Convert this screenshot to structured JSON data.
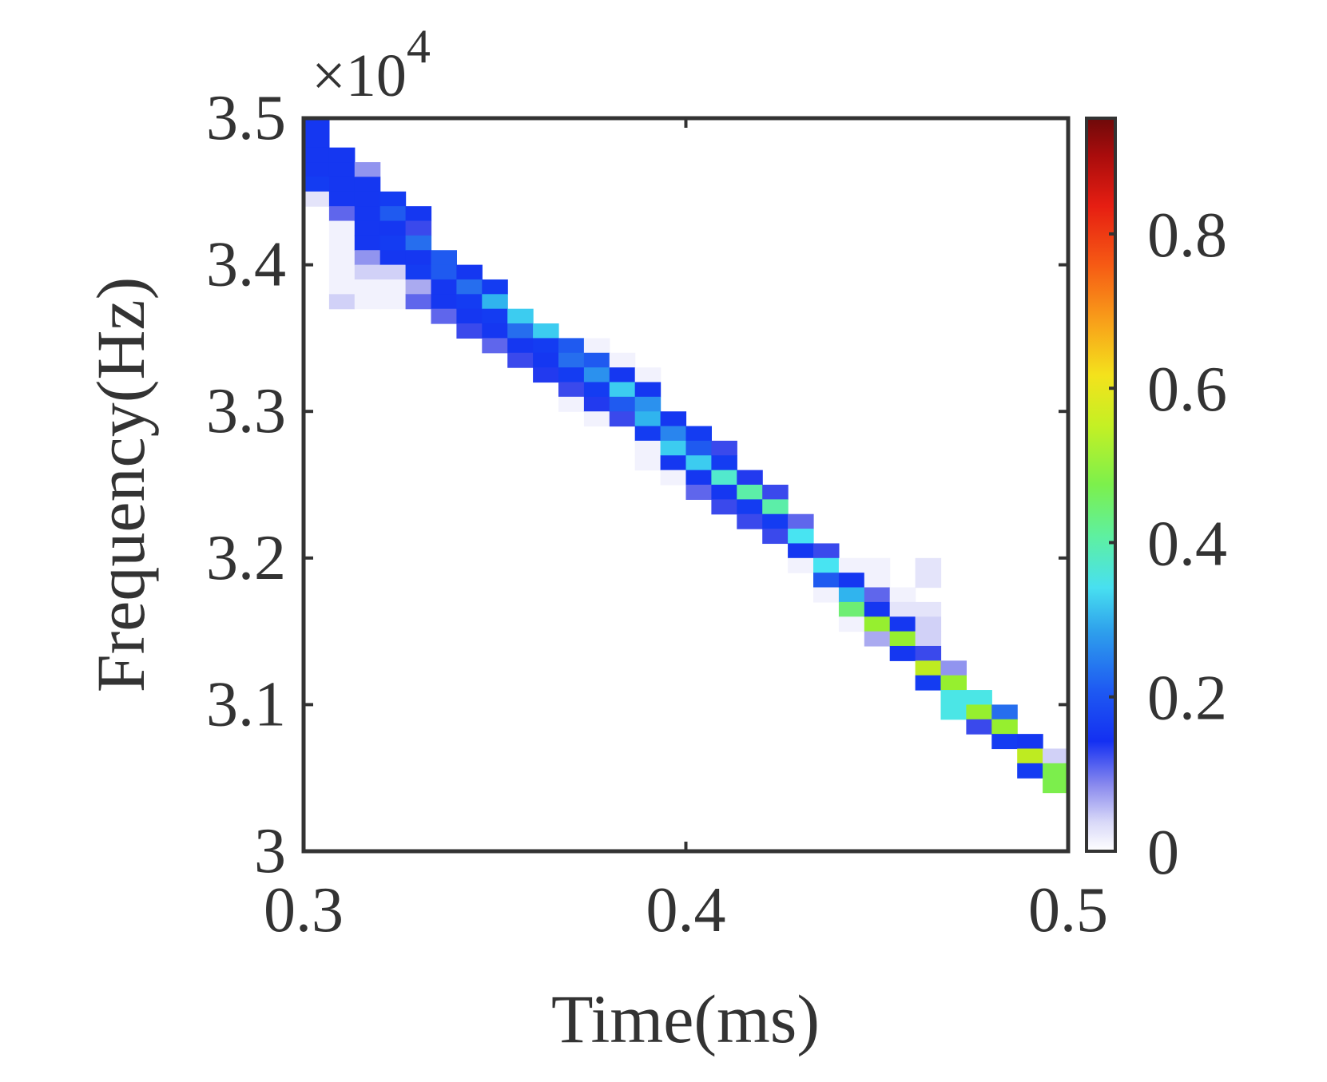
{
  "chart_data": {
    "type": "heatmap",
    "title": "",
    "xlabel": "Time(ms)",
    "ylabel": "Frequency(Hz)",
    "x_ticks": [
      "0.3",
      "0.4",
      "0.5"
    ],
    "y_ticks": [
      "3",
      "3.1",
      "3.2",
      "3.3",
      "3.4",
      "3.5"
    ],
    "y_exponent_label": "×10",
    "y_exponent_power": "4",
    "xlim": [
      0.3,
      0.5
    ],
    "ylim": [
      30000,
      35000
    ],
    "x_tick_values": [
      0.3,
      0.4,
      0.5
    ],
    "y_tick_values": [
      30000,
      31000,
      32000,
      33000,
      34000,
      35000
    ],
    "colorbar": {
      "range": [
        0,
        0.95
      ],
      "ticks": [
        "0",
        "0.2",
        "0.4",
        "0.6",
        "0.8"
      ],
      "tick_values": [
        0,
        0.2,
        0.4,
        0.6,
        0.8
      ],
      "colormap": "jet with white at zero"
    },
    "grid": false,
    "time_bins": 30,
    "frequency_bins": 50,
    "cells": [
      [
        0,
        49,
        0.15
      ],
      [
        0,
        48,
        0.15
      ],
      [
        0,
        47,
        0.15
      ],
      [
        0,
        46,
        0.15
      ],
      [
        0,
        45,
        0.17
      ],
      [
        0,
        44,
        0.02
      ],
      [
        1,
        47,
        0.15
      ],
      [
        1,
        46,
        0.15
      ],
      [
        1,
        45,
        0.15
      ],
      [
        1,
        44,
        0.15
      ],
      [
        1,
        43,
        0.08
      ],
      [
        1,
        42,
        0.01
      ],
      [
        1,
        41,
        0.01
      ],
      [
        1,
        40,
        0.01
      ],
      [
        1,
        39,
        0.01
      ],
      [
        1,
        38,
        0.01
      ],
      [
        1,
        37,
        0.03
      ],
      [
        2,
        46,
        0.06
      ],
      [
        2,
        45,
        0.15
      ],
      [
        2,
        44,
        0.15
      ],
      [
        2,
        43,
        0.15
      ],
      [
        2,
        42,
        0.15
      ],
      [
        2,
        41,
        0.15
      ],
      [
        2,
        40,
        0.06
      ],
      [
        2,
        39,
        0.03
      ],
      [
        2,
        38,
        0.01
      ],
      [
        2,
        37,
        0.01
      ],
      [
        3,
        44,
        0.17
      ],
      [
        3,
        43,
        0.2
      ],
      [
        3,
        42,
        0.15
      ],
      [
        3,
        41,
        0.17
      ],
      [
        3,
        40,
        0.15
      ],
      [
        3,
        39,
        0.03
      ],
      [
        3,
        38,
        0.01
      ],
      [
        3,
        37,
        0.01
      ],
      [
        4,
        43,
        0.15
      ],
      [
        4,
        42,
        0.1
      ],
      [
        4,
        41,
        0.22
      ],
      [
        4,
        40,
        0.15
      ],
      [
        4,
        39,
        0.17
      ],
      [
        4,
        38,
        0.05
      ],
      [
        4,
        37,
        0.08
      ],
      [
        5,
        40,
        0.2
      ],
      [
        5,
        39,
        0.2
      ],
      [
        5,
        38,
        0.15
      ],
      [
        5,
        37,
        0.15
      ],
      [
        5,
        36,
        0.08
      ],
      [
        6,
        39,
        0.15
      ],
      [
        6,
        38,
        0.22
      ],
      [
        6,
        37,
        0.17
      ],
      [
        6,
        36,
        0.15
      ],
      [
        6,
        35,
        0.1
      ],
      [
        7,
        38,
        0.17
      ],
      [
        7,
        37,
        0.28
      ],
      [
        7,
        36,
        0.17
      ],
      [
        7,
        35,
        0.15
      ],
      [
        7,
        34,
        0.08
      ],
      [
        8,
        36,
        0.3
      ],
      [
        8,
        35,
        0.22
      ],
      [
        8,
        34,
        0.15
      ],
      [
        8,
        33,
        0.1
      ],
      [
        9,
        35,
        0.3
      ],
      [
        9,
        34,
        0.17
      ],
      [
        9,
        33,
        0.15
      ],
      [
        9,
        32,
        0.12
      ],
      [
        10,
        34,
        0.2
      ],
      [
        10,
        33,
        0.22
      ],
      [
        10,
        32,
        0.17
      ],
      [
        10,
        31,
        0.1
      ],
      [
        10,
        30,
        0.01
      ],
      [
        11,
        34,
        0.01
      ],
      [
        11,
        33,
        0.2
      ],
      [
        11,
        32,
        0.25
      ],
      [
        11,
        31,
        0.17
      ],
      [
        11,
        30,
        0.12
      ],
      [
        11,
        29,
        0.01
      ],
      [
        12,
        33,
        0.01
      ],
      [
        12,
        32,
        0.15
      ],
      [
        12,
        31,
        0.3
      ],
      [
        12,
        30,
        0.2
      ],
      [
        12,
        29,
        0.1
      ],
      [
        13,
        32,
        0.01
      ],
      [
        13,
        31,
        0.15
      ],
      [
        13,
        30,
        0.25
      ],
      [
        13,
        29,
        0.28
      ],
      [
        13,
        28,
        0.17
      ],
      [
        13,
        27,
        0.01
      ],
      [
        13,
        26,
        0.01
      ],
      [
        14,
        29,
        0.15
      ],
      [
        14,
        28,
        0.24
      ],
      [
        14,
        27,
        0.3
      ],
      [
        14,
        26,
        0.15
      ],
      [
        14,
        25,
        0.01
      ],
      [
        15,
        28,
        0.17
      ],
      [
        15,
        27,
        0.2
      ],
      [
        15,
        26,
        0.3
      ],
      [
        15,
        25,
        0.15
      ],
      [
        15,
        24,
        0.08
      ],
      [
        16,
        27,
        0.1
      ],
      [
        16,
        26,
        0.17
      ],
      [
        16,
        25,
        0.35
      ],
      [
        16,
        24,
        0.15
      ],
      [
        16,
        23,
        0.1
      ],
      [
        17,
        25,
        0.12
      ],
      [
        17,
        24,
        0.38
      ],
      [
        17,
        23,
        0.17
      ],
      [
        17,
        22,
        0.1
      ],
      [
        18,
        24,
        0.1
      ],
      [
        18,
        23,
        0.38
      ],
      [
        18,
        22,
        0.17
      ],
      [
        18,
        21,
        0.1
      ],
      [
        19,
        22,
        0.08
      ],
      [
        19,
        21,
        0.32
      ],
      [
        19,
        20,
        0.15
      ],
      [
        19,
        19,
        0.01
      ],
      [
        20,
        20,
        0.1
      ],
      [
        20,
        19,
        0.32
      ],
      [
        20,
        18,
        0.2
      ],
      [
        20,
        17,
        0.01
      ],
      [
        21,
        19,
        0.01
      ],
      [
        21,
        18,
        0.15
      ],
      [
        21,
        17,
        0.28
      ],
      [
        21,
        16,
        0.42
      ],
      [
        21,
        15,
        0.01
      ],
      [
        22,
        19,
        0.01
      ],
      [
        22,
        18,
        0.01
      ],
      [
        22,
        17,
        0.08
      ],
      [
        22,
        16,
        0.15
      ],
      [
        22,
        15,
        0.5
      ],
      [
        22,
        14,
        0.05
      ],
      [
        23,
        17,
        0.01
      ],
      [
        23,
        16,
        0.02
      ],
      [
        23,
        15,
        0.15
      ],
      [
        23,
        14,
        0.5
      ],
      [
        23,
        13,
        0.15
      ],
      [
        24,
        19,
        0.02
      ],
      [
        24,
        18,
        0.02
      ],
      [
        24,
        16,
        0.02
      ],
      [
        24,
        15,
        0.03
      ],
      [
        24,
        14,
        0.03
      ],
      [
        24,
        13,
        0.1
      ],
      [
        24,
        12,
        0.55
      ],
      [
        24,
        11,
        0.17
      ],
      [
        25,
        12,
        0.06
      ],
      [
        25,
        11,
        0.5
      ],
      [
        25,
        10,
        0.33
      ],
      [
        25,
        9,
        0.33
      ],
      [
        26,
        10,
        0.33
      ],
      [
        26,
        9,
        0.5
      ],
      [
        26,
        8,
        0.1
      ],
      [
        27,
        9,
        0.22
      ],
      [
        27,
        8,
        0.5
      ],
      [
        27,
        7,
        0.17
      ],
      [
        28,
        7,
        0.15
      ],
      [
        28,
        6,
        0.55
      ],
      [
        28,
        5,
        0.17
      ],
      [
        29,
        6,
        0.03
      ],
      [
        29,
        5,
        0.45
      ],
      [
        29,
        4,
        0.45
      ]
    ]
  }
}
